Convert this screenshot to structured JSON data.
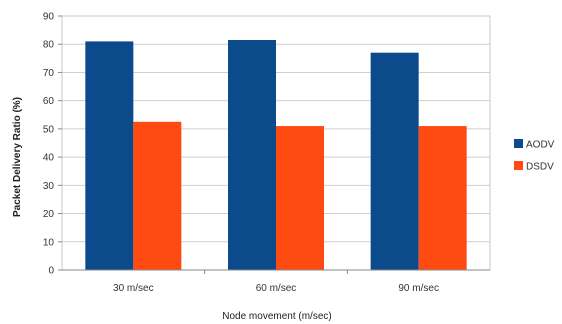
{
  "chart_data": {
    "type": "bar",
    "categories": [
      "30 m/sec",
      "60 m/sec",
      "90 m/sec"
    ],
    "series": [
      {
        "name": "AODV",
        "color": "#0b4a8b",
        "values": [
          81,
          81.5,
          77
        ]
      },
      {
        "name": "DSDV",
        "color": "#ff4a12",
        "values": [
          52.5,
          51,
          51
        ]
      }
    ],
    "title": "",
    "xlabel": "Node movement (m/sec)",
    "ylabel": "Packet Delivery Ratio (%)",
    "ylim": [
      0,
      90
    ],
    "yticks": [
      "0",
      "10",
      "20",
      "30",
      "40",
      "50",
      "60",
      "70",
      "80",
      "90"
    ],
    "grid": true,
    "legend": "right"
  }
}
